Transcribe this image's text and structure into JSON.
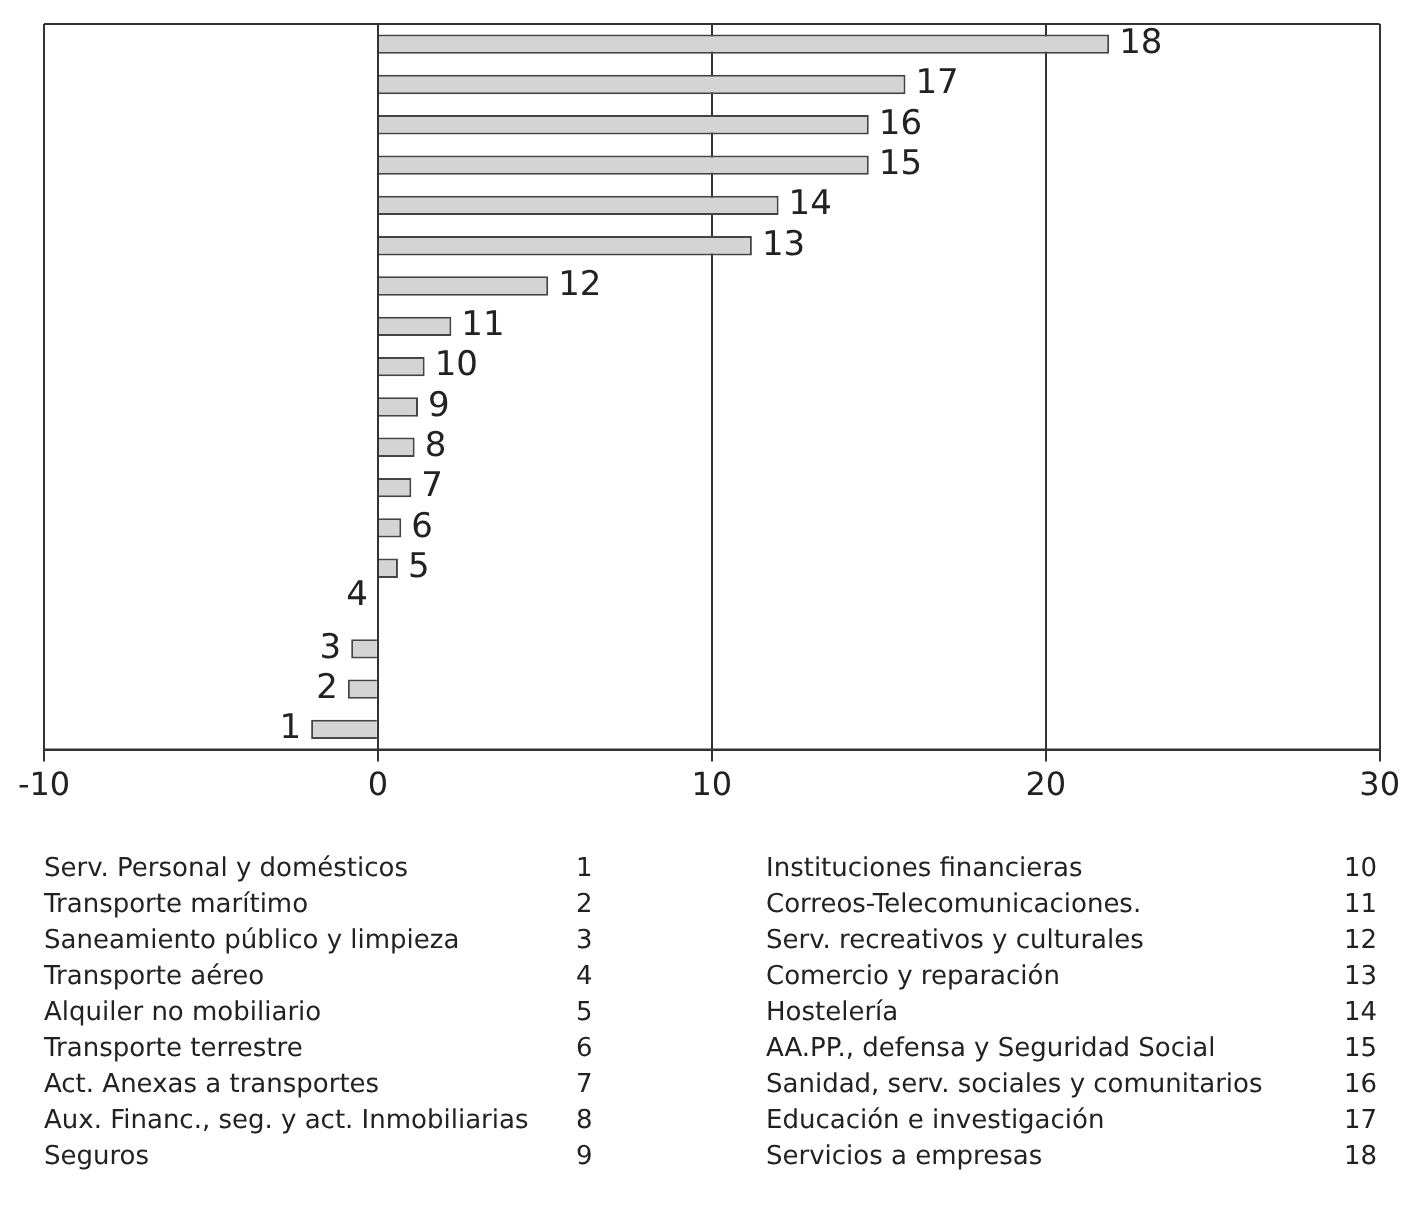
{
  "chart_data": {
    "type": "bar",
    "orientation": "horizontal",
    "categories": [
      null,
      null,
      null,
      null,
      null,
      null,
      null,
      null,
      null,
      null,
      null,
      null,
      null,
      null,
      null,
      null,
      null,
      null
    ],
    "values": [
      21.9,
      15.8,
      14.7,
      14.7,
      12.0,
      11.2,
      5.1,
      2.2,
      1.4,
      1.2,
      1.1,
      1.0,
      0.7,
      0.6,
      0,
      -0.8,
      -0.9,
      -2.0
    ],
    "color": "#d4d4d4",
    "xlim": [
      -10,
      30
    ],
    "xticks": [
      -10,
      0,
      10,
      20,
      30
    ],
    "grid": "x",
    "tick_labels": "x",
    "legend": false,
    "annotations": [
      {
        "text": "18",
        "x": 21.9
      },
      {
        "text": "17",
        "x": 15.8
      },
      {
        "text": "16",
        "x": 14.7
      },
      {
        "text": "15",
        "x": 14.7
      },
      {
        "text": "14",
        "x": 12.0
      },
      {
        "text": "13",
        "x": 11.2
      },
      {
        "text": "12",
        "x": 5.1
      },
      {
        "text": "11",
        "x": 2.2
      },
      {
        "text": "10",
        "x": 1.4
      },
      {
        "text": "9",
        "x": 1.2
      },
      {
        "text": "8",
        "x": 1.1
      },
      {
        "text": "7",
        "x": 1.0
      },
      {
        "text": "6",
        "x": 0.7
      },
      {
        "text": "5",
        "x": 0.6
      },
      "4",
      {
        "text": "3",
        "x": -0.8
      },
      {
        "text": "2",
        "x": -0.9
      },
      {
        "text": "1",
        "x": -2.0
      },
      "Serv. Personal y domésticos",
      "1",
      "Transporte marítimo",
      "2",
      "Saneamiento público y limpieza",
      "3",
      "Transporte aéreo",
      "4",
      "Alquiler no mobiliario",
      "5",
      "Transporte terrestre",
      "6",
      "Act. Anexas a transportes",
      "7",
      "Aux. Financ., seg. y act. Inmobiliarias",
      "8",
      "Seguros",
      "9",
      "Instituciones financieras",
      "10",
      "Correos-Telecomunicaciones.",
      "11",
      "Serv. recreativos y culturales",
      "12",
      "Comercio y reparación",
      "13",
      "Hostelería",
      "14",
      "AA.PP., defensa y Seguridad Social",
      "15",
      "Sanidad, serv. sociales y comunitarios",
      "16",
      "Educación e investigación",
      "17",
      "Servicios a empresas",
      "18"
    ]
  }
}
